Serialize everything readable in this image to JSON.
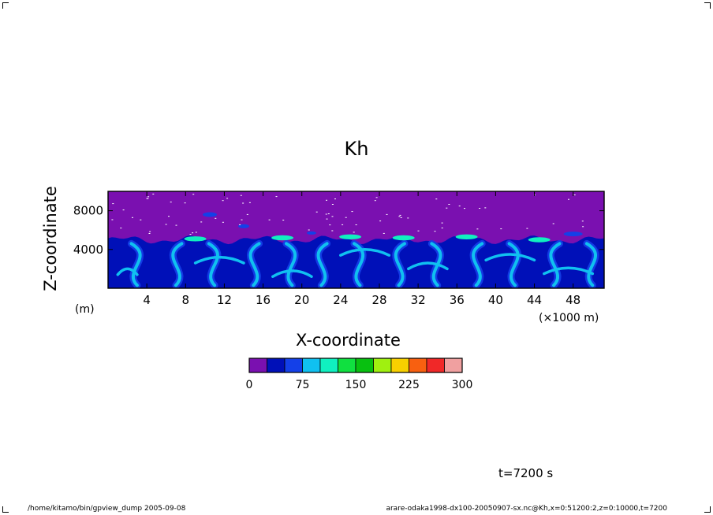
{
  "chart_data": {
    "type": "heatmap",
    "title": "Kh",
    "xlabel": "X-coordinate",
    "ylabel": "Z-coordinate",
    "x_unit": "(×1000 m)",
    "y_unit": "(m)",
    "xlim": [
      0,
      51.2
    ],
    "ylim": [
      0,
      10000
    ],
    "x_ticks": [
      4,
      8,
      12,
      16,
      20,
      24,
      28,
      32,
      36,
      40,
      44,
      48
    ],
    "y_ticks": [
      4000,
      8000
    ],
    "colorbar": {
      "min": 0,
      "max": 300,
      "step": 25,
      "tick_labels": [
        "0",
        "75",
        "150",
        "225",
        "300"
      ],
      "colors": [
        "#7a10b0",
        "#0010b8",
        "#1440e8",
        "#10c0f0",
        "#10f0c0",
        "#10e040",
        "#08c010",
        "#a0f010",
        "#f8d000",
        "#f86010",
        "#f02828",
        "#f0a0a0"
      ]
    },
    "field_description": {
      "upper_layer_value": "0-25",
      "lower_layer_top_z": 5000,
      "lower_layer_values": "25-150"
    },
    "annotations": [
      "t=7200 s"
    ]
  },
  "footer": {
    "left": "/home/kitamo/bin/gpview_dump   2005-09-08",
    "right": "arare-odaka1998-dx100-20050907-sx.nc@Kh,x=0:51200:2,z=0:10000,t=7200"
  }
}
